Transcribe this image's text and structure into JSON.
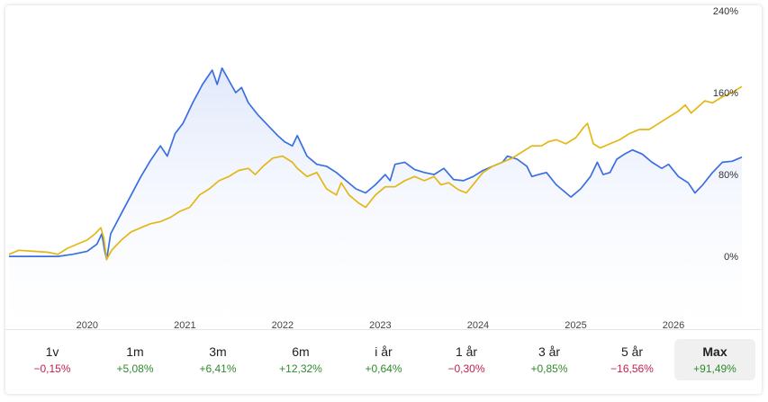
{
  "chart_data": {
    "type": "line",
    "y_ticks": [
      "240%",
      "160%",
      "80%",
      "0%"
    ],
    "y_tick_values": [
      240,
      160,
      80,
      0
    ],
    "ylim": [
      -72,
      240
    ],
    "x_ticks": [
      "2020",
      "2021",
      "2022",
      "2023",
      "2024",
      "2025",
      "2026"
    ],
    "xlim": [
      2019.2,
      2026.7
    ],
    "grid": false,
    "colors": {
      "blue": "#3a6fe0",
      "yellow": "#e3b714",
      "fill_top": "#dfe7fb"
    },
    "series": [
      {
        "color": "blue",
        "points": [
          [
            2019.2,
            0
          ],
          [
            2019.45,
            0
          ],
          [
            2019.7,
            0
          ],
          [
            2019.85,
            2
          ],
          [
            2020.0,
            5
          ],
          [
            2020.1,
            12
          ],
          [
            2020.15,
            22
          ],
          [
            2020.18,
            5
          ],
          [
            2020.2,
            -3
          ],
          [
            2020.24,
            22
          ],
          [
            2020.35,
            42
          ],
          [
            2020.45,
            60
          ],
          [
            2020.55,
            78
          ],
          [
            2020.65,
            94
          ],
          [
            2020.75,
            108
          ],
          [
            2020.82,
            98
          ],
          [
            2020.9,
            120
          ],
          [
            2020.98,
            130
          ],
          [
            2021.08,
            150
          ],
          [
            2021.18,
            168
          ],
          [
            2021.28,
            182
          ],
          [
            2021.33,
            168
          ],
          [
            2021.38,
            184
          ],
          [
            2021.45,
            172
          ],
          [
            2021.52,
            160
          ],
          [
            2021.58,
            165
          ],
          [
            2021.65,
            150
          ],
          [
            2021.75,
            138
          ],
          [
            2021.85,
            128
          ],
          [
            2021.95,
            118
          ],
          [
            2022.02,
            112
          ],
          [
            2022.1,
            108
          ],
          [
            2022.15,
            118
          ],
          [
            2022.25,
            98
          ],
          [
            2022.35,
            90
          ],
          [
            2022.45,
            88
          ],
          [
            2022.55,
            82
          ],
          [
            2022.65,
            74
          ],
          [
            2022.75,
            66
          ],
          [
            2022.85,
            62
          ],
          [
            2022.95,
            70
          ],
          [
            2023.05,
            80
          ],
          [
            2023.1,
            74
          ],
          [
            2023.15,
            90
          ],
          [
            2023.25,
            92
          ],
          [
            2023.35,
            85
          ],
          [
            2023.45,
            82
          ],
          [
            2023.55,
            80
          ],
          [
            2023.65,
            86
          ],
          [
            2023.75,
            75
          ],
          [
            2023.85,
            74
          ],
          [
            2023.95,
            78
          ],
          [
            2024.05,
            84
          ],
          [
            2024.15,
            88
          ],
          [
            2024.25,
            92
          ],
          [
            2024.3,
            98
          ],
          [
            2024.4,
            95
          ],
          [
            2024.5,
            88
          ],
          [
            2024.55,
            78
          ],
          [
            2024.62,
            80
          ],
          [
            2024.7,
            82
          ],
          [
            2024.8,
            70
          ],
          [
            2024.9,
            62
          ],
          [
            2024.95,
            58
          ],
          [
            2025.05,
            66
          ],
          [
            2025.15,
            78
          ],
          [
            2025.22,
            92
          ],
          [
            2025.28,
            80
          ],
          [
            2025.35,
            82
          ],
          [
            2025.42,
            95
          ],
          [
            2025.5,
            100
          ],
          [
            2025.58,
            104
          ],
          [
            2025.68,
            100
          ],
          [
            2025.78,
            92
          ],
          [
            2025.88,
            86
          ],
          [
            2025.95,
            90
          ],
          [
            2026.05,
            78
          ],
          [
            2026.15,
            72
          ],
          [
            2026.22,
            62
          ],
          [
            2026.3,
            70
          ],
          [
            2026.4,
            82
          ],
          [
            2026.5,
            92
          ],
          [
            2026.6,
            93
          ],
          [
            2026.7,
            97
          ]
        ]
      },
      {
        "color": "yellow",
        "points": [
          [
            2019.2,
            2
          ],
          [
            2019.3,
            6
          ],
          [
            2019.45,
            5
          ],
          [
            2019.6,
            4
          ],
          [
            2019.7,
            2
          ],
          [
            2019.8,
            8
          ],
          [
            2019.9,
            12
          ],
          [
            2020.0,
            16
          ],
          [
            2020.08,
            22
          ],
          [
            2020.14,
            28
          ],
          [
            2020.17,
            18
          ],
          [
            2020.2,
            -3
          ],
          [
            2020.25,
            6
          ],
          [
            2020.35,
            16
          ],
          [
            2020.45,
            24
          ],
          [
            2020.55,
            28
          ],
          [
            2020.65,
            32
          ],
          [
            2020.75,
            34
          ],
          [
            2020.85,
            38
          ],
          [
            2020.95,
            44
          ],
          [
            2021.05,
            48
          ],
          [
            2021.15,
            60
          ],
          [
            2021.25,
            66
          ],
          [
            2021.35,
            74
          ],
          [
            2021.45,
            78
          ],
          [
            2021.55,
            84
          ],
          [
            2021.65,
            86
          ],
          [
            2021.72,
            80
          ],
          [
            2021.8,
            88
          ],
          [
            2021.9,
            96
          ],
          [
            2022.0,
            98
          ],
          [
            2022.1,
            92
          ],
          [
            2022.15,
            86
          ],
          [
            2022.25,
            78
          ],
          [
            2022.35,
            82
          ],
          [
            2022.45,
            66
          ],
          [
            2022.55,
            60
          ],
          [
            2022.6,
            72
          ],
          [
            2022.68,
            60
          ],
          [
            2022.78,
            52
          ],
          [
            2022.85,
            48
          ],
          [
            2022.95,
            60
          ],
          [
            2023.05,
            68
          ],
          [
            2023.15,
            68
          ],
          [
            2023.25,
            74
          ],
          [
            2023.35,
            78
          ],
          [
            2023.45,
            74
          ],
          [
            2023.55,
            78
          ],
          [
            2023.62,
            70
          ],
          [
            2023.7,
            72
          ],
          [
            2023.8,
            65
          ],
          [
            2023.88,
            62
          ],
          [
            2023.95,
            70
          ],
          [
            2024.05,
            82
          ],
          [
            2024.15,
            88
          ],
          [
            2024.25,
            92
          ],
          [
            2024.35,
            96
          ],
          [
            2024.45,
            102
          ],
          [
            2024.55,
            108
          ],
          [
            2024.65,
            108
          ],
          [
            2024.72,
            112
          ],
          [
            2024.8,
            114
          ],
          [
            2024.9,
            110
          ],
          [
            2025.0,
            116
          ],
          [
            2025.08,
            126
          ],
          [
            2025.12,
            130
          ],
          [
            2025.18,
            110
          ],
          [
            2025.25,
            106
          ],
          [
            2025.35,
            110
          ],
          [
            2025.45,
            114
          ],
          [
            2025.55,
            120
          ],
          [
            2025.65,
            124
          ],
          [
            2025.75,
            124
          ],
          [
            2025.85,
            130
          ],
          [
            2025.95,
            136
          ],
          [
            2026.05,
            142
          ],
          [
            2026.12,
            148
          ],
          [
            2026.18,
            140
          ],
          [
            2026.25,
            146
          ],
          [
            2026.32,
            152
          ],
          [
            2026.4,
            150
          ],
          [
            2026.5,
            156
          ],
          [
            2026.6,
            160
          ],
          [
            2026.7,
            166
          ]
        ]
      }
    ]
  },
  "periods": [
    {
      "label": "1v",
      "change": "−0,15%",
      "tone": "neg",
      "active": false
    },
    {
      "label": "1m",
      "change": "+5,08%",
      "tone": "pos",
      "active": false
    },
    {
      "label": "3m",
      "change": "+6,41%",
      "tone": "pos",
      "active": false
    },
    {
      "label": "6m",
      "change": "+12,32%",
      "tone": "pos",
      "active": false
    },
    {
      "label": "i år",
      "change": "+0,64%",
      "tone": "pos",
      "active": false
    },
    {
      "label": "1 år",
      "change": "−0,30%",
      "tone": "neg",
      "active": false
    },
    {
      "label": "3 år",
      "change": "+0,85%",
      "tone": "pos",
      "active": false
    },
    {
      "label": "5 år",
      "change": "−16,56%",
      "tone": "neg",
      "active": false
    },
    {
      "label": "Max",
      "change": "+91,49%",
      "tone": "pos",
      "active": true
    }
  ]
}
